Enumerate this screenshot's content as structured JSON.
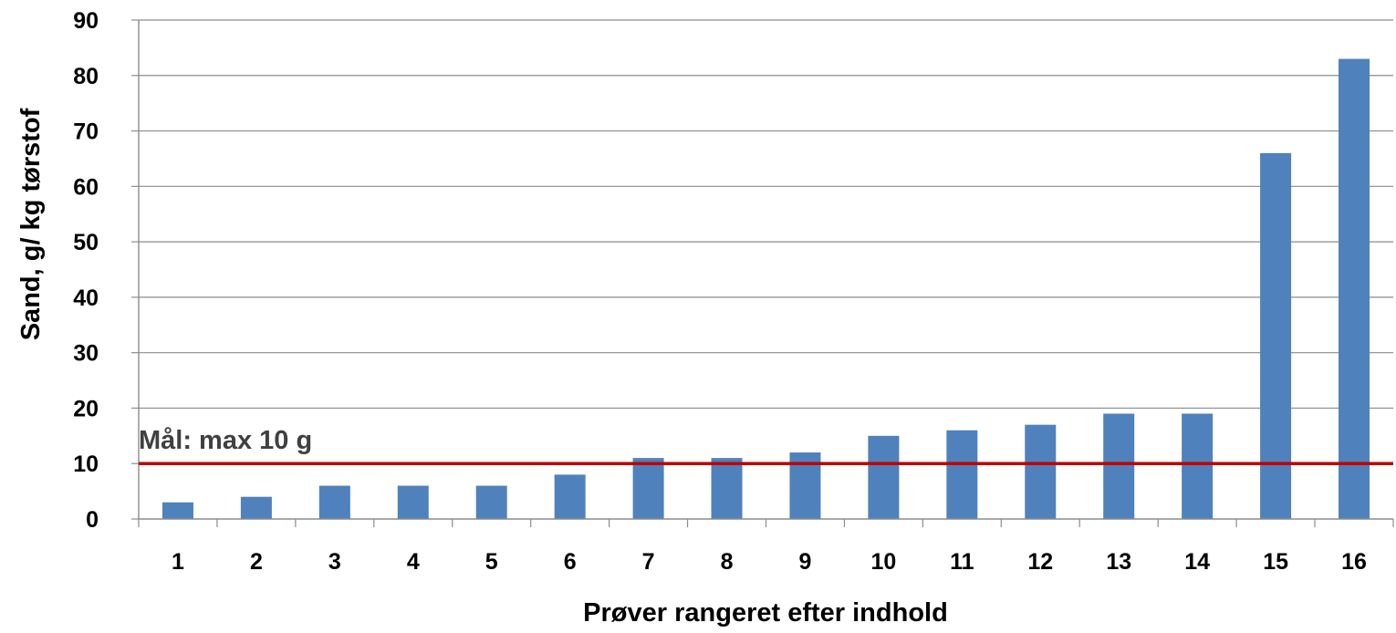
{
  "chart_data": {
    "type": "bar",
    "title": "",
    "xlabel": "Prøver rangeret efter indhold",
    "ylabel": "Sand, g/ kg tørstof",
    "categories": [
      "1",
      "2",
      "3",
      "4",
      "5",
      "6",
      "7",
      "8",
      "9",
      "10",
      "11",
      "12",
      "13",
      "14",
      "15",
      "16"
    ],
    "values": [
      3,
      4,
      6,
      6,
      6,
      8,
      11,
      11,
      12,
      15,
      16,
      17,
      19,
      19,
      66,
      83
    ],
    "ylim": [
      0,
      90
    ],
    "yticks": [
      0,
      10,
      20,
      30,
      40,
      50,
      60,
      70,
      80,
      90
    ],
    "grid": true,
    "legend": "none",
    "bar_color": "#4F81BD",
    "reference_line": {
      "value": 10,
      "label": "Mål: max 10 g",
      "color": "#C00000"
    }
  }
}
